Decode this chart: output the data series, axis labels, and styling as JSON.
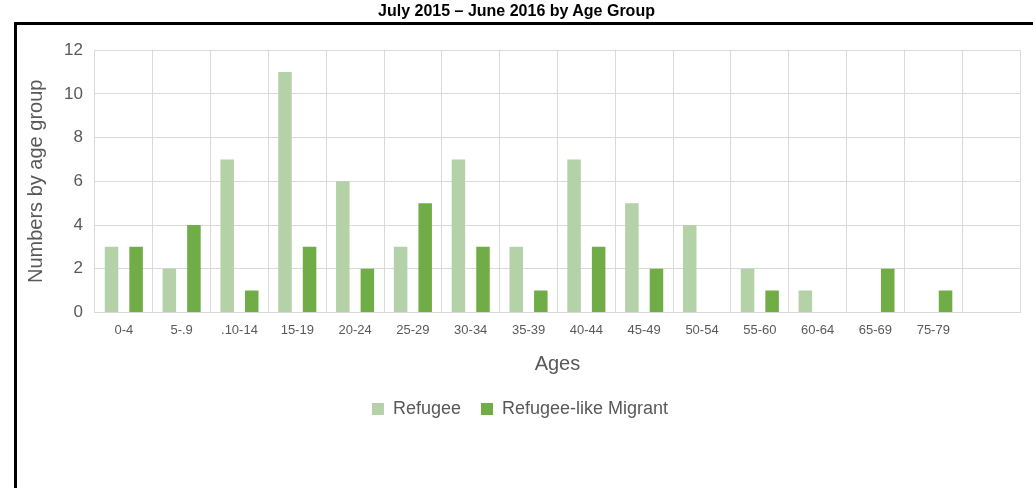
{
  "chart_data": {
    "type": "bar",
    "title": "July 2015 – June 2016 by Age Group",
    "xlabel": "Ages",
    "ylabel": "Numbers by age group",
    "categories": [
      "0-4",
      "5-.9",
      ".10-14",
      "15-19",
      "20-24",
      "25-29",
      "30-34",
      "35-39",
      "40-44",
      "45-49",
      "50-54",
      "55-60",
      "60-64",
      "65-69",
      "75-79",
      null
    ],
    "series": [
      {
        "name": "Refugee",
        "color": "#b5d1a8",
        "values": [
          3,
          2,
          7,
          11,
          6,
          3,
          7,
          3,
          7,
          5,
          4,
          2,
          1,
          null,
          null,
          null
        ]
      },
      {
        "name": "Refugee-like Migrant",
        "color": "#70ad47",
        "values": [
          3,
          4,
          1,
          3,
          2,
          5,
          3,
          1,
          3,
          2,
          null,
          1,
          null,
          2,
          1,
          null
        ]
      }
    ],
    "ylim": [
      0,
      12
    ],
    "yticks": [
      0,
      2,
      4,
      6,
      8,
      10,
      12
    ],
    "grid": true,
    "legend": "bottom"
  }
}
